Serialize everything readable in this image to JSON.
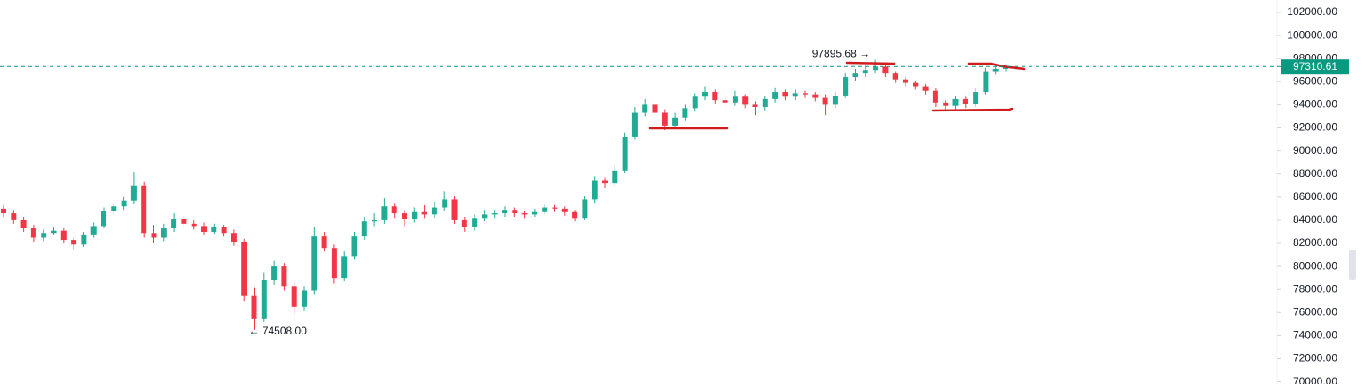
{
  "chart_data": {
    "type": "candlestick",
    "ylim": [
      69816,
      103073
    ],
    "yticks": [
      {
        "value": 70000,
        "label": "70000.00"
      },
      {
        "value": 72000,
        "label": "72000.00"
      },
      {
        "value": 74000,
        "label": "74000.00"
      },
      {
        "value": 76000,
        "label": "76000.00"
      },
      {
        "value": 78000,
        "label": "78000.00"
      },
      {
        "value": 80000,
        "label": "80000.00"
      },
      {
        "value": 82000,
        "label": "82000.00"
      },
      {
        "value": 84000,
        "label": "84000.00"
      },
      {
        "value": 86000,
        "label": "86000.00"
      },
      {
        "value": 88000,
        "label": "88000.00"
      },
      {
        "value": 90000,
        "label": "90000.00"
      },
      {
        "value": 92000,
        "label": "92000.00"
      },
      {
        "value": 94000,
        "label": "94000.00"
      },
      {
        "value": 96000,
        "label": "96000.00"
      },
      {
        "value": 98000,
        "label": "98000.00"
      },
      {
        "value": 100000,
        "label": "100000.00"
      },
      {
        "value": 102000,
        "label": "102000.00"
      }
    ],
    "up_color": "#22ab94",
    "down_color": "#f23645",
    "last_price": 97310.61,
    "last_price_color": "#089981",
    "annotations": [
      {
        "text": "97895.68 →",
        "value": 97895.68
      },
      {
        "text": "← 74508.00",
        "value": 74508
      }
    ],
    "candles": [
      [
        85000,
        85300,
        84300,
        84600
      ],
      [
        84600,
        84900,
        83700,
        84000
      ],
      [
        84000,
        84300,
        83000,
        83300
      ],
      [
        83300,
        83600,
        82100,
        82500
      ],
      [
        82500,
        83200,
        82200,
        82900
      ],
      [
        82900,
        83400,
        82700,
        83100
      ],
      [
        83100,
        83300,
        82000,
        82300
      ],
      [
        82300,
        82500,
        81500,
        81900
      ],
      [
        81900,
        83000,
        81700,
        82700
      ],
      [
        82700,
        83800,
        82500,
        83500
      ],
      [
        83500,
        85100,
        83300,
        84800
      ],
      [
        84800,
        85500,
        84500,
        85200
      ],
      [
        85200,
        86000,
        84900,
        85700
      ],
      [
        85700,
        88200,
        85400,
        87000
      ],
      [
        87000,
        87300,
        82500,
        82900
      ],
      [
        82900,
        83600,
        82000,
        82500
      ],
      [
        82500,
        83700,
        82200,
        83300
      ],
      [
        83300,
        84600,
        83000,
        84100
      ],
      [
        84100,
        84400,
        83400,
        83700
      ],
      [
        83700,
        84000,
        83200,
        83500
      ],
      [
        83500,
        83800,
        82700,
        83000
      ],
      [
        83000,
        83700,
        82800,
        83400
      ],
      [
        83400,
        83600,
        82600,
        82900
      ],
      [
        82900,
        83200,
        81800,
        82100
      ],
      [
        82100,
        82400,
        77000,
        77500
      ],
      [
        77500,
        78200,
        74508,
        75500
      ],
      [
        75500,
        79500,
        75200,
        78800
      ],
      [
        78800,
        80500,
        78400,
        80000
      ],
      [
        80000,
        80300,
        77900,
        78300
      ],
      [
        78300,
        78600,
        75900,
        76500
      ],
      [
        76500,
        78300,
        76200,
        77900
      ],
      [
        77900,
        83400,
        77600,
        82600
      ],
      [
        82600,
        83000,
        81300,
        81600
      ],
      [
        81600,
        81900,
        78500,
        79000
      ],
      [
        79000,
        81300,
        78700,
        80900
      ],
      [
        80900,
        83000,
        80600,
        82600
      ],
      [
        82600,
        84300,
        82300,
        83900
      ],
      [
        83900,
        84600,
        83500,
        84000
      ],
      [
        84000,
        85900,
        83700,
        85200
      ],
      [
        85200,
        85500,
        84200,
        84600
      ],
      [
        84600,
        84900,
        83500,
        84100
      ],
      [
        84100,
        85100,
        83800,
        84700
      ],
      [
        84700,
        85300,
        84200,
        84500
      ],
      [
        84500,
        85600,
        84200,
        85100
      ],
      [
        85100,
        86500,
        84800,
        85800
      ],
      [
        85800,
        86100,
        83700,
        84000
      ],
      [
        84000,
        84300,
        83000,
        83400
      ],
      [
        83400,
        84500,
        83100,
        84200
      ],
      [
        84200,
        84900,
        83900,
        84500
      ],
      [
        84500,
        84900,
        84200,
        84600
      ],
      [
        84600,
        85200,
        84300,
        84900
      ],
      [
        84900,
        85100,
        84300,
        84600
      ],
      [
        84600,
        84800,
        84200,
        84500
      ],
      [
        84500,
        85000,
        84300,
        84700
      ],
      [
        84700,
        85400,
        84500,
        85100
      ],
      [
        85100,
        85300,
        84700,
        85000
      ],
      [
        85000,
        85200,
        84400,
        84700
      ],
      [
        84700,
        84900,
        83900,
        84200
      ],
      [
        84200,
        86100,
        84000,
        85800
      ],
      [
        85800,
        87800,
        85500,
        87400
      ],
      [
        87400,
        87700,
        86800,
        87200
      ],
      [
        87200,
        88700,
        87000,
        88300
      ],
      [
        88300,
        91600,
        88100,
        91200
      ],
      [
        91200,
        93800,
        91000,
        93300
      ],
      [
        93300,
        94500,
        93000,
        94000
      ],
      [
        94000,
        94300,
        93000,
        93300
      ],
      [
        93300,
        93600,
        91800,
        92200
      ],
      [
        92200,
        93300,
        91900,
        92900
      ],
      [
        92900,
        94000,
        92600,
        93700
      ],
      [
        93700,
        95000,
        93400,
        94700
      ],
      [
        94700,
        95600,
        94400,
        95100
      ],
      [
        95100,
        95300,
        94100,
        94400
      ],
      [
        94400,
        94700,
        93900,
        94200
      ],
      [
        94200,
        95200,
        93900,
        94700
      ],
      [
        94700,
        94900,
        93700,
        94000
      ],
      [
        94000,
        94300,
        93100,
        93800
      ],
      [
        93800,
        94800,
        93500,
        94500
      ],
      [
        94500,
        95500,
        94200,
        95100
      ],
      [
        95100,
        95300,
        94400,
        94700
      ],
      [
        94700,
        95300,
        94400,
        95000
      ],
      [
        95000,
        95200,
        94600,
        94900
      ],
      [
        94900,
        95100,
        94300,
        94600
      ],
      [
        94600,
        94900,
        93100,
        94000
      ],
      [
        94000,
        95100,
        93700,
        94800
      ],
      [
        94800,
        96800,
        94600,
        96400
      ],
      [
        96400,
        97100,
        96100,
        96700
      ],
      [
        96700,
        97400,
        96400,
        97000
      ],
      [
        97000,
        97895.68,
        96700,
        97300
      ],
      [
        97300,
        97500,
        96400,
        96700
      ],
      [
        96700,
        96900,
        95900,
        96200
      ],
      [
        96200,
        96400,
        95600,
        95900
      ],
      [
        95900,
        96100,
        95300,
        95600
      ],
      [
        95600,
        95800,
        94900,
        95200
      ],
      [
        95200,
        95400,
        93800,
        94200
      ],
      [
        94200,
        94400,
        93500,
        93900
      ],
      [
        93900,
        94800,
        93600,
        94500
      ],
      [
        94500,
        94700,
        93700,
        94100
      ],
      [
        94100,
        95400,
        93800,
        95100
      ],
      [
        95100,
        97200,
        94900,
        96900
      ],
      [
        96900,
        97400,
        96600,
        97100
      ],
      [
        97100,
        97500,
        96900,
        97310.61
      ]
    ]
  }
}
